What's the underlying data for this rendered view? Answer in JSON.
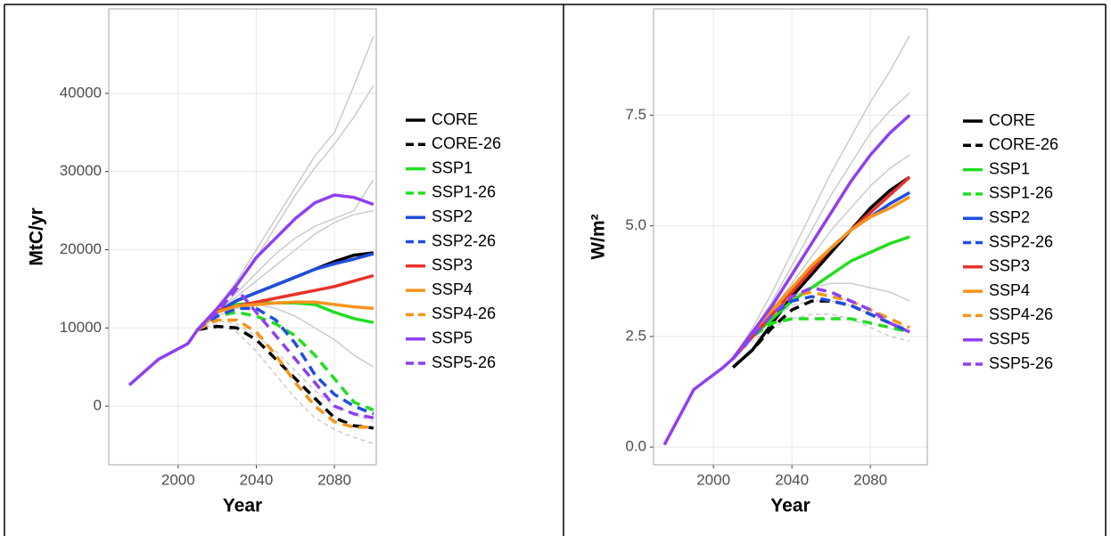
{
  "chart_data": [
    {
      "type": "line",
      "y_label": "MtC/yr",
      "x_label": "Year",
      "grid": true,
      "x": [
        1975,
        1990,
        2005,
        2010,
        2020,
        2030,
        2040,
        2050,
        2060,
        2070,
        2080,
        2090,
        2100
      ],
      "xlim": [
        1964.5,
        2101.4
      ],
      "xticks": [
        2000,
        2040,
        2080
      ],
      "ylim": [
        -7500,
        50800
      ],
      "yticks": [
        0,
        10000,
        20000,
        30000,
        40000
      ],
      "series": [
        {
          "color": "#c8c8c8",
          "style": "solid",
          "values": [
            null,
            null,
            null,
            9800,
            12500,
            16000,
            20000,
            24000,
            28000,
            32000,
            35000,
            41000,
            47300
          ]
        },
        {
          "color": "#c8c8c8",
          "style": "solid",
          "values": [
            null,
            null,
            null,
            9800,
            12500,
            15500,
            19000,
            23000,
            27000,
            30500,
            33500,
            37000,
            41000
          ]
        },
        {
          "color": "#c8c8c8",
          "style": "solid",
          "values": [
            null,
            null,
            null,
            9800,
            12000,
            14000,
            16000,
            18000,
            20000,
            22000,
            23500,
            24500,
            25000
          ]
        },
        {
          "color": "#c8c8c8",
          "style": "solid",
          "values": [
            null,
            null,
            null,
            9800,
            12000,
            14500,
            17000,
            19500,
            21500,
            23000,
            24000,
            25000,
            29000
          ]
        },
        {
          "color": "#c8c8c8",
          "style": "solid",
          "values": [
            null,
            null,
            null,
            9800,
            11500,
            12500,
            13000,
            12500,
            11500,
            10000,
            8500,
            6500,
            5000
          ]
        },
        {
          "color": "#c8c8c8",
          "style": "dashed",
          "values": [
            null,
            null,
            null,
            9800,
            10500,
            9500,
            7000,
            4000,
            1000,
            -1500,
            -3000,
            -4000,
            -4800
          ]
        },
        {
          "color": "#c8c8c8",
          "style": "dashed",
          "values": [
            null,
            null,
            null,
            9800,
            11000,
            10500,
            9000,
            7000,
            4500,
            2000,
            0,
            -1000,
            -2000
          ]
        },
        {
          "name": "CORE",
          "color": "#000000",
          "style": "solid",
          "values": [
            null,
            null,
            null,
            9800,
            12000,
            13500,
            14500,
            15500,
            16500,
            17500,
            18500,
            19300,
            19600
          ]
        },
        {
          "name": "CORE-26",
          "color": "#000000",
          "style": "dashed",
          "values": [
            null,
            null,
            null,
            9800,
            10200,
            10000,
            8500,
            6000,
            3500,
            1000,
            -1500,
            -2500,
            -2800
          ]
        },
        {
          "name": "SSP1",
          "color": "#22dd22",
          "style": "solid",
          "values": [
            null,
            null,
            null,
            9800,
            12000,
            13000,
            13200,
            13200,
            13200,
            13000,
            12000,
            11200,
            10700
          ]
        },
        {
          "name": "SSP1-26",
          "color": "#22dd22",
          "style": "dashed",
          "values": [
            null,
            null,
            null,
            9800,
            11500,
            12000,
            11500,
            10500,
            9000,
            6500,
            3500,
            500,
            -500
          ]
        },
        {
          "name": "SSP2",
          "color": "#1f4fe0",
          "style": "solid",
          "values": [
            null,
            null,
            null,
            9800,
            12000,
            13500,
            14500,
            15500,
            16500,
            17500,
            18200,
            18800,
            19500
          ]
        },
        {
          "name": "SSP2-26",
          "color": "#1f4fe0",
          "style": "dashed",
          "values": [
            null,
            null,
            null,
            9800,
            11500,
            12500,
            12500,
            11000,
            8000,
            4000,
            1500,
            0,
            -1000
          ]
        },
        {
          "name": "SSP3",
          "color": "#e8322a",
          "style": "solid",
          "values": [
            null,
            null,
            null,
            9800,
            12200,
            12800,
            13300,
            13800,
            14300,
            14800,
            15300,
            16000,
            16700
          ]
        },
        {
          "name": "SSP4",
          "color": "#f7941d",
          "style": "solid",
          "values": [
            null,
            null,
            null,
            9800,
            12000,
            12800,
            13000,
            13200,
            13300,
            13300,
            13000,
            12700,
            12500
          ]
        },
        {
          "name": "SSP4-26",
          "color": "#f7941d",
          "style": "dashed",
          "values": [
            null,
            null,
            null,
            9800,
            11000,
            11000,
            9500,
            6500,
            3000,
            0,
            -2000,
            -2700,
            -2700
          ]
        },
        {
          "name": "SSP5",
          "color": "#8f3ff0",
          "style": "solid",
          "values": [
            2700,
            6000,
            8000,
            9800,
            12500,
            15500,
            19000,
            21500,
            24000,
            26000,
            27000,
            26700,
            25800
          ]
        },
        {
          "name": "SSP5-26",
          "color": "#8f3ff0",
          "style": "dashed",
          "values": [
            null,
            null,
            null,
            9800,
            12000,
            15000,
            12000,
            9000,
            6000,
            3000,
            0,
            -1000,
            -1500
          ]
        }
      ]
    },
    {
      "type": "line",
      "y_label": "W/m²",
      "x_label": "Year",
      "grid": true,
      "x": [
        1975,
        1990,
        2005,
        2010,
        2020,
        2030,
        2040,
        2050,
        2060,
        2070,
        2080,
        2090,
        2100
      ],
      "xlim": [
        1969.5,
        2109
      ],
      "xticks": [
        2000,
        2040,
        2080
      ],
      "ylim": [
        -0.4,
        9.9
      ],
      "yticks": [
        {
          "value": 0,
          "label": "0.0"
        },
        2.5,
        {
          "value": 5,
          "label": "5.0"
        },
        7.5
      ],
      "series": [
        {
          "color": "#c8c8c8",
          "style": "solid",
          "values": [
            null,
            null,
            null,
            2.0,
            2.7,
            3.5,
            4.4,
            5.3,
            6.2,
            7.0,
            7.8,
            8.5,
            9.3
          ]
        },
        {
          "color": "#c8c8c8",
          "style": "solid",
          "values": [
            null,
            null,
            null,
            2.0,
            2.6,
            3.3,
            4.1,
            4.9,
            5.7,
            6.4,
            7.1,
            7.6,
            8.0
          ]
        },
        {
          "color": "#c8c8c8",
          "style": "solid",
          "values": [
            null,
            null,
            null,
            2.0,
            2.5,
            3.1,
            3.7,
            4.3,
            4.9,
            5.4,
            5.9,
            6.3,
            6.6
          ]
        },
        {
          "color": "#c8c8c8",
          "style": "solid",
          "values": [
            null,
            null,
            null,
            2.0,
            2.5,
            3.0,
            3.4,
            3.6,
            3.7,
            3.7,
            3.6,
            3.5,
            3.3
          ]
        },
        {
          "color": "#c8c8c8",
          "style": "dashed",
          "values": [
            null,
            null,
            null,
            2.0,
            2.4,
            2.7,
            2.9,
            3.0,
            3.0,
            2.9,
            2.7,
            2.5,
            2.4
          ]
        },
        {
          "color": "#c8c8c8",
          "style": "dashed",
          "values": [
            null,
            null,
            null,
            2.0,
            2.5,
            2.9,
            3.2,
            3.3,
            3.3,
            3.2,
            3.0,
            2.8,
            2.7
          ]
        },
        {
          "name": "CORE",
          "color": "#000000",
          "style": "solid",
          "values": [
            null,
            null,
            null,
            1.8,
            2.2,
            2.8,
            3.4,
            3.9,
            4.4,
            4.9,
            5.4,
            5.8,
            6.1
          ]
        },
        {
          "name": "CORE-26",
          "color": "#000000",
          "style": "dashed",
          "values": [
            null,
            null,
            null,
            1.8,
            2.2,
            2.7,
            3.1,
            3.3,
            3.3,
            3.2,
            3.0,
            2.8,
            2.6
          ]
        },
        {
          "name": "SSP1",
          "color": "#22dd22",
          "style": "solid",
          "values": [
            null,
            null,
            null,
            2.0,
            2.5,
            2.9,
            3.3,
            3.6,
            3.9,
            4.2,
            4.4,
            4.6,
            4.75
          ]
        },
        {
          "name": "SSP1-26",
          "color": "#22dd22",
          "style": "dashed",
          "values": [
            null,
            null,
            null,
            2.0,
            2.5,
            2.8,
            2.9,
            2.9,
            2.9,
            2.9,
            2.8,
            2.7,
            2.6
          ]
        },
        {
          "name": "SSP2",
          "color": "#1f4fe0",
          "style": "solid",
          "values": [
            null,
            null,
            null,
            2.0,
            2.5,
            3.0,
            3.5,
            4.0,
            4.5,
            4.9,
            5.2,
            5.5,
            5.75
          ]
        },
        {
          "name": "SSP2-26",
          "color": "#1f4fe0",
          "style": "dashed",
          "values": [
            null,
            null,
            null,
            2.0,
            2.5,
            3.0,
            3.3,
            3.4,
            3.3,
            3.2,
            3.0,
            2.8,
            2.6
          ]
        },
        {
          "name": "SSP3",
          "color": "#e8322a",
          "style": "solid",
          "values": [
            null,
            null,
            null,
            2.0,
            2.5,
            3.0,
            3.5,
            4.0,
            4.5,
            4.9,
            5.3,
            5.7,
            6.1
          ]
        },
        {
          "name": "SSP4",
          "color": "#f7941d",
          "style": "solid",
          "values": [
            null,
            null,
            null,
            2.0,
            2.6,
            3.1,
            3.6,
            4.1,
            4.5,
            4.9,
            5.2,
            5.4,
            5.65
          ]
        },
        {
          "name": "SSP4-26",
          "color": "#f7941d",
          "style": "dashed",
          "values": [
            null,
            null,
            null,
            2.0,
            2.6,
            3.1,
            3.4,
            3.5,
            3.4,
            3.3,
            3.1,
            2.9,
            2.7
          ]
        },
        {
          "name": "SSP5",
          "color": "#8f3ff0",
          "style": "solid",
          "values": [
            0.05,
            1.3,
            1.8,
            2.0,
            2.6,
            3.2,
            3.9,
            4.6,
            5.3,
            6.0,
            6.6,
            7.1,
            7.5
          ]
        },
        {
          "name": "SSP5-26",
          "color": "#8f3ff0",
          "style": "dashed",
          "values": [
            null,
            null,
            null,
            2.0,
            2.5,
            3.0,
            3.4,
            3.6,
            3.5,
            3.3,
            3.1,
            2.8,
            2.6
          ]
        }
      ]
    }
  ]
}
